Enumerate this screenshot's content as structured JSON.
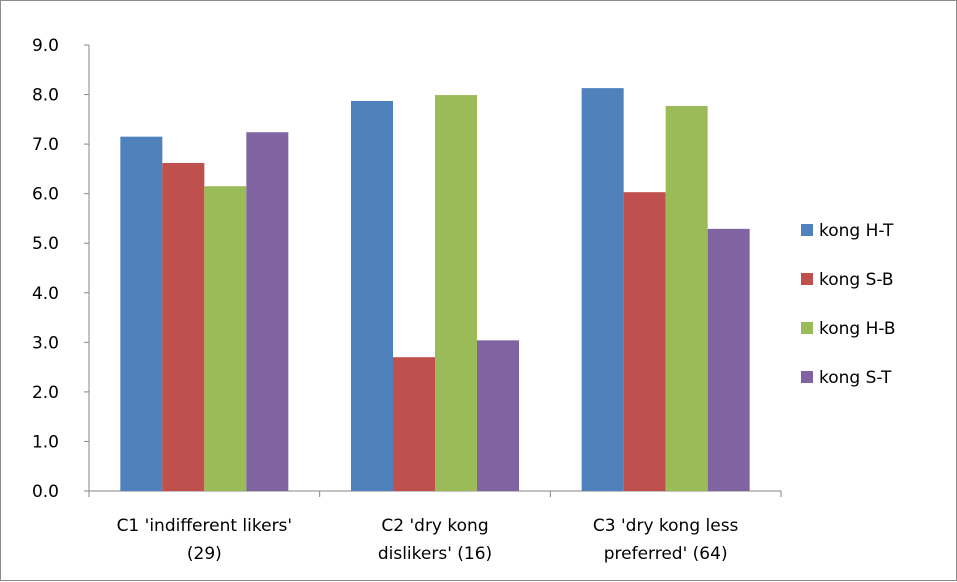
{
  "chart_data": {
    "type": "bar",
    "categories": [
      [
        "C1 'indifferent likers'",
        "(29)"
      ],
      [
        "C2 'dry kong",
        "dislikers' (16)"
      ],
      [
        "C3 'dry kong less",
        "preferred' (64)"
      ]
    ],
    "series": [
      {
        "name": "kong H-T",
        "color": "#4f81bd",
        "values": [
          7.15,
          7.87,
          8.13
        ]
      },
      {
        "name": "kong S-B",
        "color": "#c0504d",
        "values": [
          6.62,
          2.7,
          6.03
        ]
      },
      {
        "name": "kong H-B",
        "color": "#9bbb59",
        "values": [
          6.15,
          7.99,
          7.77
        ]
      },
      {
        "name": "kong S-T",
        "color": "#8064a2",
        "values": [
          7.24,
          3.04,
          5.29
        ]
      }
    ],
    "ylim": [
      0,
      9
    ],
    "yticks": [
      "0.0",
      "1.0",
      "2.0",
      "3.0",
      "4.0",
      "5.0",
      "6.0",
      "7.0",
      "8.0",
      "9.0"
    ],
    "title": "",
    "xlabel": "",
    "ylabel": "",
    "grid": false,
    "legend_position": "right"
  }
}
